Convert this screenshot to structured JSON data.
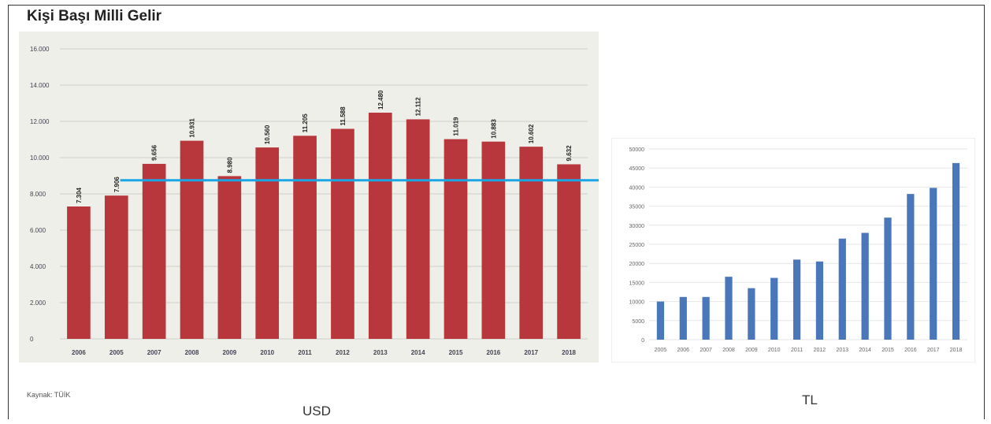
{
  "title": "Kişi Başı Milli Gelir",
  "source_note": "Kaynak: TÜİK",
  "usd_caption": "USD",
  "tl_caption": "TL",
  "colors": {
    "usd_bar": "#b8373d",
    "usd_bg": "#efefea",
    "tl_bar": "#4a77b9",
    "reference_line": "#1aa5e6"
  },
  "chart_data": [
    {
      "type": "bar",
      "name": "usd",
      "categories": [
        "2006",
        "2005",
        "2007",
        "2008",
        "2009",
        "2010",
        "2011",
        "2012",
        "2013",
        "2014",
        "2015",
        "2016",
        "2017",
        "2018"
      ],
      "values": [
        7304,
        7906,
        9656,
        10931,
        8980,
        10560,
        11205,
        11588,
        12480,
        12112,
        11019,
        10883,
        10602,
        9632
      ],
      "value_labels": [
        "7.304",
        "7.906",
        "9.656",
        "10.931",
        "8.980",
        "10.560",
        "11.205",
        "11.588",
        "12.480",
        "12.112",
        "11.019",
        "10.883",
        "10.602",
        "9.632"
      ],
      "ylim": [
        0,
        16000
      ],
      "y_ticks": [
        0,
        2000,
        4000,
        6000,
        8000,
        10000,
        12000,
        14000,
        16000
      ],
      "y_tick_labels": [
        "0",
        "2.000",
        "4.000",
        "6.000",
        "8.000",
        "10.000",
        "12.000",
        "14.000",
        "16.000"
      ],
      "reference_line_value": 8750,
      "grid": true
    },
    {
      "type": "bar",
      "name": "tl",
      "categories": [
        "2005",
        "2006",
        "2007",
        "2008",
        "2009",
        "2010",
        "2011",
        "2012",
        "2013",
        "2014",
        "2015",
        "2016",
        "2017",
        "2018"
      ],
      "values": [
        10000,
        11200,
        11200,
        16500,
        13500,
        16200,
        21000,
        20500,
        26500,
        28000,
        32000,
        38200,
        39800,
        46300
      ],
      "ylim": [
        0,
        50000
      ],
      "y_ticks": [
        0,
        5000,
        10000,
        15000,
        20000,
        25000,
        30000,
        35000,
        40000,
        45000,
        50000
      ],
      "y_tick_labels": [
        "0",
        "5000",
        "10000",
        "15000",
        "20000",
        "25000",
        "30000",
        "35000",
        "40000",
        "45000",
        "50000"
      ],
      "grid": true
    }
  ]
}
